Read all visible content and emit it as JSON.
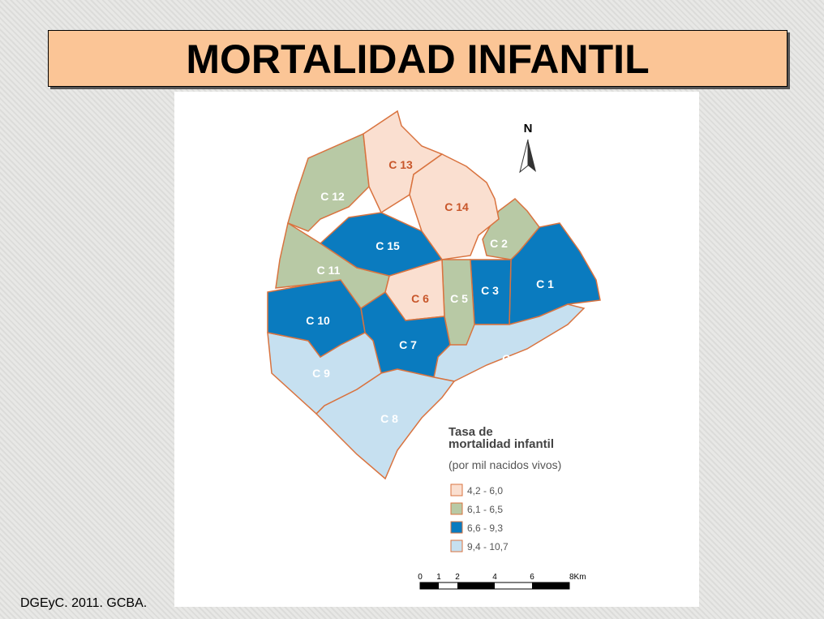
{
  "title": "MORTALIDAD INFANTIL",
  "map": {
    "north": "N",
    "communes": [
      {
        "label": "C 1",
        "class": 2
      },
      {
        "label": "C 2",
        "class": 1
      },
      {
        "label": "C 3",
        "class": 2
      },
      {
        "label": "C 4",
        "class": 3
      },
      {
        "label": "C 5",
        "class": 1
      },
      {
        "label": "C 6",
        "class": 0
      },
      {
        "label": "C 7",
        "class": 2
      },
      {
        "label": "C 8",
        "class": 3
      },
      {
        "label": "C 9",
        "class": 3
      },
      {
        "label": "C 10",
        "class": 2
      },
      {
        "label": "C 11",
        "class": 1
      },
      {
        "label": "C 12",
        "class": 1
      },
      {
        "label": "C 13",
        "class": 0
      },
      {
        "label": "C 14",
        "class": 0
      },
      {
        "label": "C 15",
        "class": 2
      }
    ],
    "legend": {
      "title": [
        "Tasa de",
        "mortalidad infantil"
      ],
      "subtitle": "(por mil nacidos vivos)",
      "items": [
        {
          "label": "4,2 - 6,0",
          "color": "#fadfd0",
          "text_color": "#c8562a"
        },
        {
          "label": "6,1 - 6,5",
          "color": "#b8c9a5",
          "text_color": "#ffffff"
        },
        {
          "label": "6,6 - 9,3",
          "color": "#0a7bbf",
          "text_color": "#ffffff"
        },
        {
          "label": "9,4 - 10,7",
          "color": "#c6e0f0",
          "text_color": "#ffffff"
        }
      ]
    },
    "scale": {
      "labels": [
        "0",
        "1",
        "2",
        "4",
        "6",
        "8Km"
      ]
    }
  },
  "source": "DGEyC. 2011. GCBA."
}
